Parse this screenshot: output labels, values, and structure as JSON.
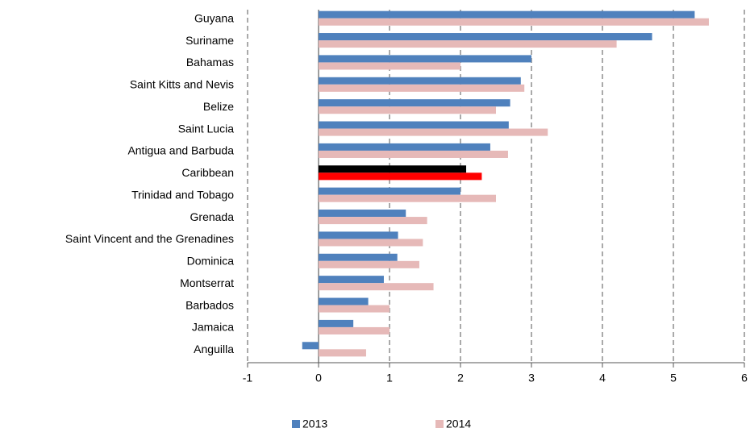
{
  "chart_data": {
    "type": "hbar",
    "categories": [
      "Guyana",
      "Suriname",
      "Bahamas",
      "Saint Kitts and Nevis",
      "Belize",
      "Saint Lucia",
      "Antigua and Barbuda",
      "Caribbean",
      "Trinidad and Tobago",
      "Grenada",
      "Saint Vincent and the Grenadines",
      "Dominica",
      "Montserrat",
      "Barbados",
      "Jamaica",
      "Anguilla"
    ],
    "series": [
      {
        "name": "2013",
        "color": "#4f81bd",
        "colors": [
          "#4f81bd",
          "#4f81bd",
          "#4f81bd",
          "#4f81bd",
          "#4f81bd",
          "#4f81bd",
          "#4f81bd",
          "#000000",
          "#4f81bd",
          "#4f81bd",
          "#4f81bd",
          "#4f81bd",
          "#4f81bd",
          "#4f81bd",
          "#4f81bd",
          "#4f81bd"
        ],
        "values": [
          5.3,
          4.7,
          3.0,
          2.85,
          2.7,
          2.68,
          2.42,
          2.08,
          2.0,
          1.23,
          1.12,
          1.11,
          0.92,
          0.7,
          0.49,
          -0.23
        ]
      },
      {
        "name": "2014",
        "color": "#e6b9b8",
        "colors": [
          "#e6b9b8",
          "#e6b9b8",
          "#e6b9b8",
          "#e6b9b8",
          "#e6b9b8",
          "#e6b9b8",
          "#e6b9b8",
          "#ff0000",
          "#e6b9b8",
          "#e6b9b8",
          "#e6b9b8",
          "#e6b9b8",
          "#e6b9b8",
          "#e6b9b8",
          "#e6b9b8",
          "#e6b9b8"
        ],
        "values": [
          5.5,
          4.2,
          2.0,
          2.9,
          2.5,
          3.23,
          2.67,
          2.3,
          2.5,
          1.53,
          1.47,
          1.42,
          1.62,
          1.0,
          1.0,
          0.67
        ]
      }
    ],
    "xlim": [
      -1,
      6
    ],
    "xticks": [
      -1,
      0,
      1,
      2,
      3,
      4,
      5,
      6
    ],
    "grid": true,
    "legend": "bottom"
  }
}
